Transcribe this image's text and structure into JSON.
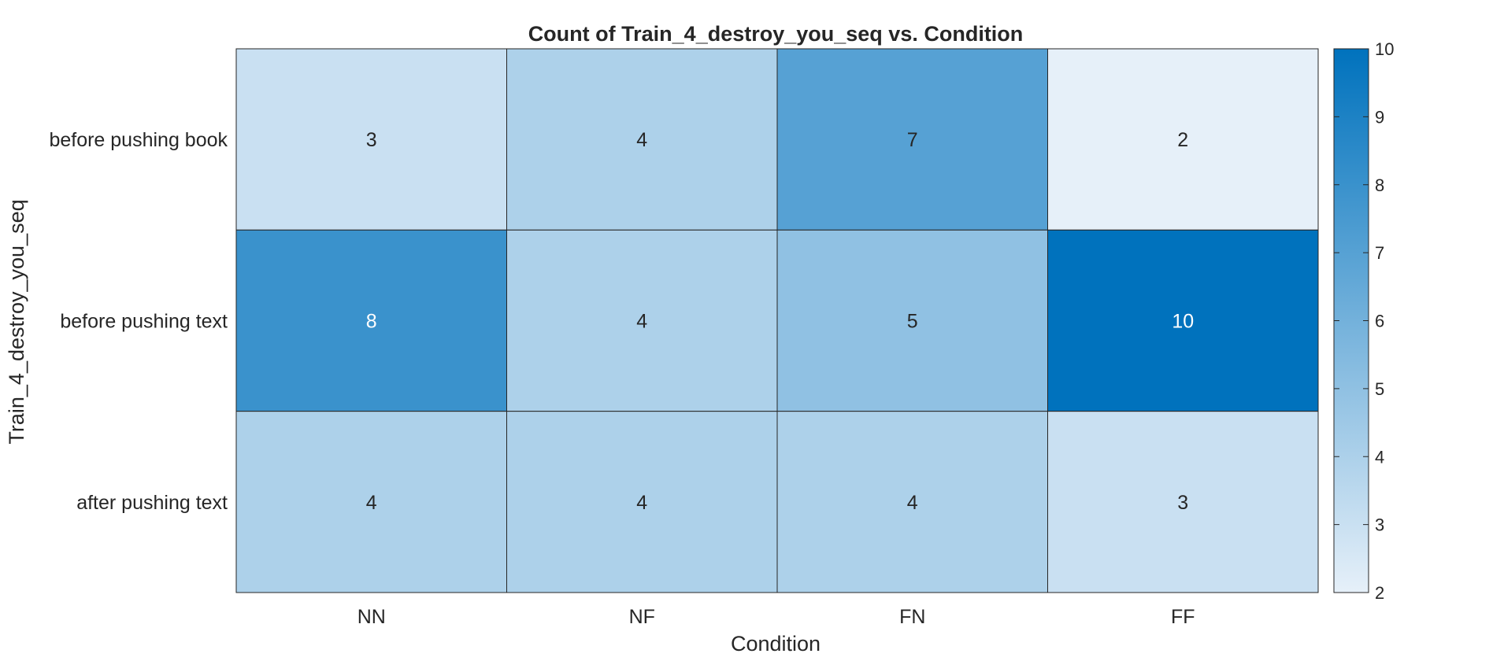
{
  "chart_data": {
    "type": "heatmap",
    "title": "Count of Train_4_destroy_you_seq vs. Condition",
    "xlabel": "Condition",
    "ylabel": "Train_4_destroy_you_seq",
    "x_categories": [
      "NN",
      "NF",
      "FN",
      "FF"
    ],
    "y_categories": [
      "before pushing book",
      "before pushing text",
      "after pushing text"
    ],
    "values": [
      [
        3,
        4,
        7,
        2
      ],
      [
        8,
        4,
        5,
        10
      ],
      [
        4,
        4,
        4,
        3
      ]
    ],
    "colorbar": {
      "min": 2,
      "max": 10,
      "ticks": [
        2,
        3,
        4,
        5,
        6,
        7,
        8,
        9,
        10
      ],
      "low_color": "#e6f0f9",
      "high_color": "#0072bd"
    }
  }
}
